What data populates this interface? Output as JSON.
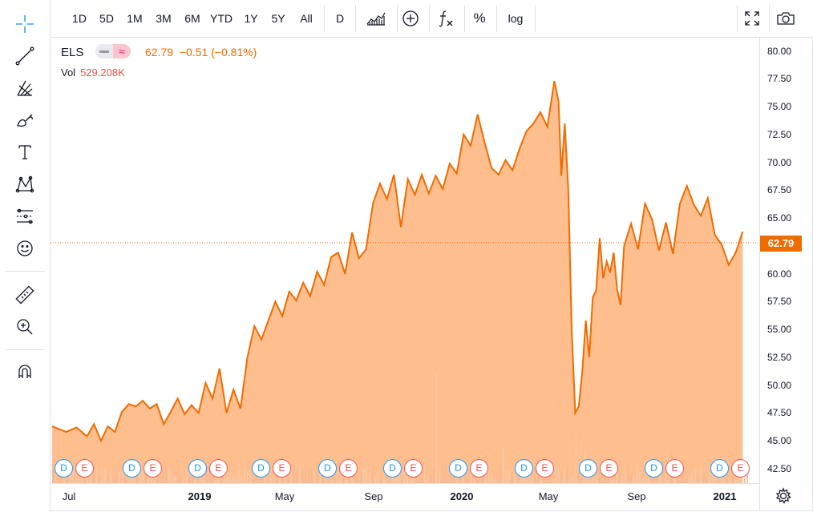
{
  "toolbar": {
    "timeframes": [
      "1D",
      "5D",
      "1M",
      "3M",
      "6M",
      "YTD",
      "1Y",
      "5Y",
      "All"
    ],
    "interval": "D",
    "percent": "%",
    "log": "log"
  },
  "left_tools": [
    "crosshair-icon",
    "trend-line-icon",
    "pitchfork-icon",
    "brush-icon",
    "text-icon",
    "pattern-icon",
    "prediction-icon",
    "emoji-icon",
    "ruler-icon",
    "zoom-in-icon",
    "magnet-icon"
  ],
  "legend": {
    "symbol": "ELS",
    "compare": "≈",
    "price": "62.79",
    "change": "−0.51 (−0.81%)",
    "vol_label": "Vol",
    "vol_value": "529.208K"
  },
  "price_tag": "62.79",
  "colors": {
    "accent": "#ef6c00",
    "fill": "#ffb37a",
    "event_d": "#2196f3",
    "event_e": "#ef5350"
  },
  "chart_data": {
    "type": "area",
    "ylim": [
      41.2,
      81.2
    ],
    "y_ticks": [
      "80.00",
      "77.50",
      "75.00",
      "72.50",
      "70.00",
      "67.50",
      "65.00",
      "62.50",
      "60.00",
      "57.50",
      "55.00",
      "52.50",
      "50.00",
      "47.50",
      "45.00",
      "42.50"
    ],
    "x_tick_labels": [
      {
        "label": "Jul",
        "bold": false
      },
      {
        "label": "2019",
        "bold": true
      },
      {
        "label": "May",
        "bold": false
      },
      {
        "label": "Sep",
        "bold": false
      },
      {
        "label": "2020",
        "bold": true
      },
      {
        "label": "May",
        "bold": false
      },
      {
        "label": "Sep",
        "bold": false
      },
      {
        "label": "2021",
        "bold": true
      }
    ],
    "x_range": [
      0,
      100
    ],
    "points": [
      [
        0,
        46.3
      ],
      [
        2,
        45.8
      ],
      [
        3.5,
        46.2
      ],
      [
        5,
        45.4
      ],
      [
        6,
        46.5
      ],
      [
        7,
        45.0
      ],
      [
        8,
        46.3
      ],
      [
        9,
        45.8
      ],
      [
        10,
        47.6
      ],
      [
        11,
        48.3
      ],
      [
        12,
        48.1
      ],
      [
        13,
        48.6
      ],
      [
        14,
        47.9
      ],
      [
        15,
        48.3
      ],
      [
        16,
        46.5
      ],
      [
        17,
        47.6
      ],
      [
        18,
        48.8
      ],
      [
        19,
        47.4
      ],
      [
        20,
        48.2
      ],
      [
        21,
        47.5
      ],
      [
        22,
        50.2
      ],
      [
        23,
        48.8
      ],
      [
        24,
        51.5
      ],
      [
        25,
        47.5
      ],
      [
        26,
        49.6
      ],
      [
        27,
        47.9
      ],
      [
        28,
        52.5
      ],
      [
        29,
        55.3
      ],
      [
        30,
        54.1
      ],
      [
        31,
        55.8
      ],
      [
        32,
        57.5
      ],
      [
        33,
        56.2
      ],
      [
        34,
        58.4
      ],
      [
        35,
        57.6
      ],
      [
        36,
        59.2
      ],
      [
        37,
        58.0
      ],
      [
        38,
        60.2
      ],
      [
        39,
        59.0
      ],
      [
        40,
        61.5
      ],
      [
        41,
        61.9
      ],
      [
        42,
        60.0
      ],
      [
        43,
        63.7
      ],
      [
        44,
        61.4
      ],
      [
        45,
        62.2
      ],
      [
        46,
        66.3
      ],
      [
        47,
        68.1
      ],
      [
        48,
        66.7
      ],
      [
        49,
        68.9
      ],
      [
        50,
        64.2
      ],
      [
        51,
        68.5
      ],
      [
        52,
        67.1
      ],
      [
        53,
        68.9
      ],
      [
        54,
        67.2
      ],
      [
        55,
        68.8
      ],
      [
        56,
        67.6
      ],
      [
        57,
        69.9
      ],
      [
        58,
        69.0
      ],
      [
        59,
        72.5
      ],
      [
        60,
        71.5
      ],
      [
        61,
        74.3
      ],
      [
        62,
        71.8
      ],
      [
        63,
        69.5
      ],
      [
        64,
        68.9
      ],
      [
        65,
        70.2
      ],
      [
        66,
        69.3
      ],
      [
        67,
        71.2
      ],
      [
        68,
        72.8
      ],
      [
        69,
        73.5
      ],
      [
        70,
        74.5
      ],
      [
        71,
        73.2
      ],
      [
        72,
        77.3
      ],
      [
        72.6,
        75.5
      ],
      [
        73,
        68.8
      ],
      [
        73.5,
        73.5
      ],
      [
        74,
        67.5
      ],
      [
        74.5,
        54.8
      ],
      [
        75,
        47.5
      ],
      [
        75.5,
        48.1
      ],
      [
        76,
        51.2
      ],
      [
        76.5,
        55.8
      ],
      [
        77,
        52.5
      ],
      [
        77.5,
        57.9
      ],
      [
        78,
        58.5
      ],
      [
        78.5,
        63.2
      ],
      [
        79,
        59.6
      ],
      [
        79.5,
        61.1
      ],
      [
        80,
        60.1
      ],
      [
        80.5,
        61.9
      ],
      [
        81,
        58.6
      ],
      [
        81.5,
        57.2
      ],
      [
        82,
        62.5
      ],
      [
        83,
        64.5
      ],
      [
        84,
        62.2
      ],
      [
        85,
        66.3
      ],
      [
        86,
        64.9
      ],
      [
        87,
        62.1
      ],
      [
        88,
        64.6
      ],
      [
        89,
        61.8
      ],
      [
        90,
        66.3
      ],
      [
        91,
        67.9
      ],
      [
        92,
        66.2
      ],
      [
        93,
        65.2
      ],
      [
        94,
        66.8
      ],
      [
        95,
        63.5
      ],
      [
        96,
        62.6
      ],
      [
        97,
        60.8
      ],
      [
        98,
        61.9
      ],
      [
        99,
        63.8
      ]
    ],
    "volume_bars": 240
  },
  "events_label": {
    "d": "D",
    "e": "E"
  }
}
